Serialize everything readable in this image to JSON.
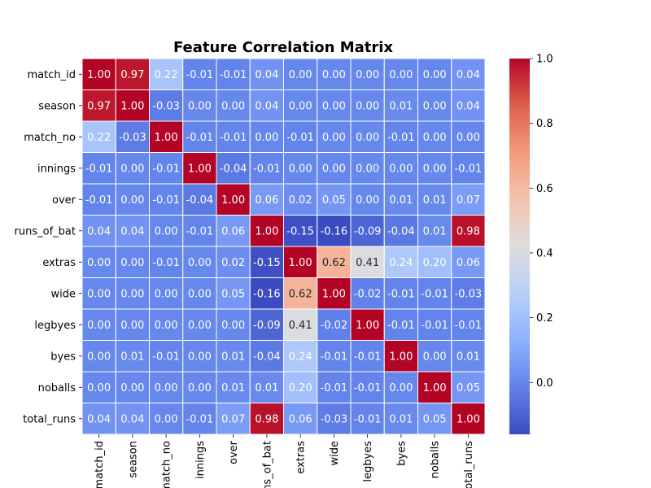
{
  "chart_data": {
    "type": "heatmap",
    "title": "Feature Correlation Matrix",
    "xlabel": "",
    "ylabel": "",
    "labels": [
      "match_id",
      "season",
      "match_no",
      "innings",
      "over",
      "runs_of_bat",
      "extras",
      "wide",
      "legbyes",
      "byes",
      "noballs",
      "total_runs"
    ],
    "x_tick_labels": [
      "match_id",
      "season",
      "match_no",
      "innings",
      "over",
      "runs_of_bat",
      "extras",
      "wide",
      "legbyes",
      "byes",
      "noballs",
      "total_runs"
    ],
    "y_tick_labels": [
      "match_id",
      "season",
      "match_no",
      "innings",
      "over",
      "runs_of_bat",
      "extras",
      "wide",
      "legbyes",
      "byes",
      "noballs",
      "total_runs"
    ],
    "matrix": [
      [
        1.0,
        0.97,
        0.22,
        -0.01,
        -0.01,
        0.04,
        -0.0,
        0.0,
        -0.0,
        0.0,
        0.0,
        0.04
      ],
      [
        0.97,
        1.0,
        -0.03,
        -0.0,
        -0.0,
        0.04,
        -0.0,
        0.0,
        -0.0,
        0.01,
        0.0,
        0.04
      ],
      [
        0.22,
        -0.03,
        1.0,
        -0.01,
        -0.01,
        0.0,
        -0.01,
        0.0,
        -0.0,
        -0.01,
        -0.0,
        -0.0
      ],
      [
        -0.01,
        -0.0,
        -0.01,
        1.0,
        -0.04,
        -0.01,
        0.0,
        -0.0,
        0.0,
        -0.0,
        -0.0,
        -0.01
      ],
      [
        -0.01,
        -0.0,
        -0.01,
        -0.04,
        1.0,
        0.06,
        0.02,
        0.05,
        -0.0,
        0.01,
        0.01,
        0.07
      ],
      [
        0.04,
        0.04,
        0.0,
        -0.01,
        0.06,
        1.0,
        -0.15,
        -0.16,
        -0.09,
        -0.04,
        0.01,
        0.98
      ],
      [
        -0.0,
        -0.0,
        -0.01,
        0.0,
        0.02,
        -0.15,
        1.0,
        0.62,
        0.41,
        0.24,
        0.2,
        0.06
      ],
      [
        0.0,
        0.0,
        0.0,
        -0.0,
        0.05,
        -0.16,
        0.62,
        1.0,
        -0.02,
        -0.01,
        -0.01,
        -0.03
      ],
      [
        -0.0,
        -0.0,
        -0.0,
        0.0,
        -0.0,
        -0.09,
        0.41,
        -0.02,
        1.0,
        -0.01,
        -0.01,
        -0.01
      ],
      [
        0.0,
        0.01,
        -0.01,
        -0.0,
        0.01,
        -0.04,
        0.24,
        -0.01,
        -0.01,
        1.0,
        -0.0,
        0.01
      ],
      [
        0.0,
        0.0,
        -0.0,
        -0.0,
        0.01,
        0.01,
        0.2,
        -0.01,
        -0.01,
        -0.0,
        1.0,
        0.05
      ],
      [
        0.04,
        0.04,
        -0.0,
        -0.01,
        0.07,
        0.98,
        0.06,
        -0.03,
        -0.01,
        0.01,
        0.05,
        1.0
      ]
    ],
    "annotations": "2-decimal values in each cell",
    "colormap": "coolwarm",
    "vmin": -0.16,
    "vmax": 1.0,
    "colorbar_ticks": [
      -0.0,
      0.2,
      0.4,
      0.6,
      0.8,
      1.0
    ],
    "colorbar_tick_labels": [
      "0.0",
      "0.2",
      "0.4",
      "0.6",
      "0.8",
      "1.0"
    ],
    "cell_gridlines": "white",
    "grid": false,
    "legend": "colorbar-right",
    "colors": {
      "low": "#3b4cc0",
      "mid": "#dddddd",
      "high": "#b40426"
    }
  }
}
